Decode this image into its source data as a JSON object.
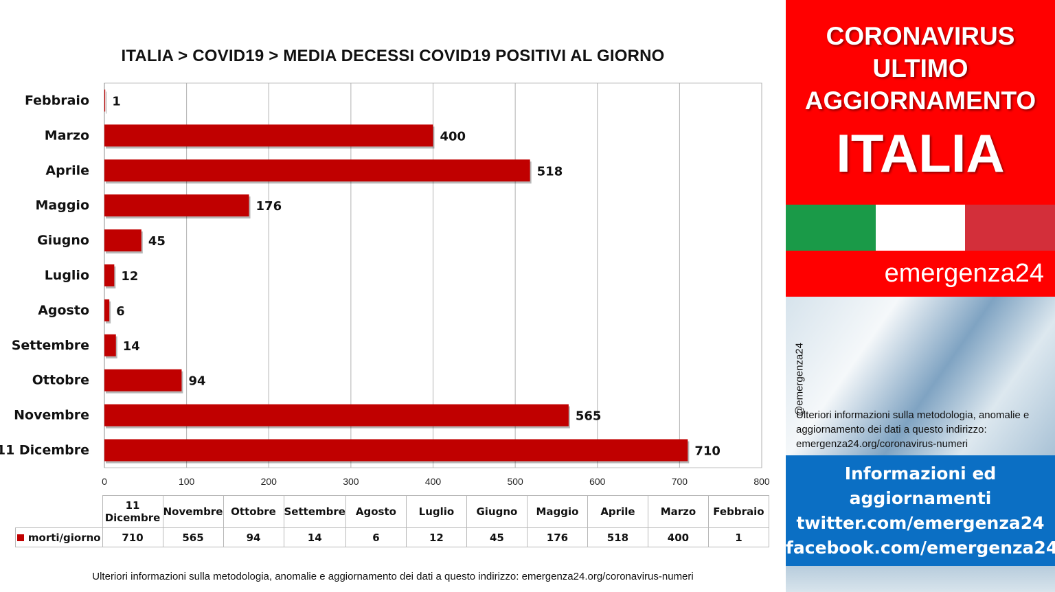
{
  "chart_data": {
    "type": "bar",
    "orientation": "horizontal",
    "title": "ITALIA >  COVID19 > MEDIA DECESSI COVID19 POSITIVI AL GIORNO",
    "categories": [
      "Febbraio",
      "Marzo",
      "Aprile",
      "Maggio",
      "Giugno",
      "Luglio",
      "Agosto",
      "Settembre",
      "Ottobre",
      "Novembre",
      "11 Dicembre"
    ],
    "series": [
      {
        "name": "morti/giorno",
        "color": "#c00000",
        "values": [
          1,
          400,
          518,
          176,
          45,
          12,
          6,
          14,
          94,
          565,
          710
        ]
      }
    ],
    "xlim": [
      0,
      800
    ],
    "xticks": [
      0,
      100,
      200,
      300,
      400,
      500,
      600,
      700,
      800
    ],
    "grid": true,
    "data_labels": true,
    "data_table": {
      "headers": [
        "11 Dicembre",
        "Novembre",
        "Ottobre",
        "Settembre",
        "Agosto",
        "Luglio",
        "Giugno",
        "Maggio",
        "Aprile",
        "Marzo",
        "Febbraio"
      ],
      "row_label": "morti/giorno",
      "values": [
        710,
        565,
        94,
        14,
        6,
        12,
        45,
        176,
        518,
        400,
        1
      ]
    }
  },
  "footer_note": "Ulteriori informazioni sulla metodologia, anomalie e aggiornamento dei dati a questo indirizzo: emergenza24.org/coronavirus-numeri",
  "sidebar": {
    "header_lines": [
      "CORONAVIRUS",
      "ULTIMO",
      "AGGIORNAMENTO"
    ],
    "country": "ITALIA",
    "brand": "emergenza24",
    "handle": "@emergenza24",
    "note": "Ulteriori informazioni sulla metodologia, anomalie e aggiornamento dei dati a questo indirizzo: emergenza24.org/coronavirus-numeri",
    "info_lines": [
      "Informazioni ed",
      "aggiornamenti",
      "twitter.com/emergenza24",
      "facebook.com/emergenza24"
    ],
    "colors": {
      "red": "#ff0000",
      "blue": "#0b6fc4",
      "flag_green": "#1a9a48",
      "flag_red": "#d32f3a"
    }
  }
}
